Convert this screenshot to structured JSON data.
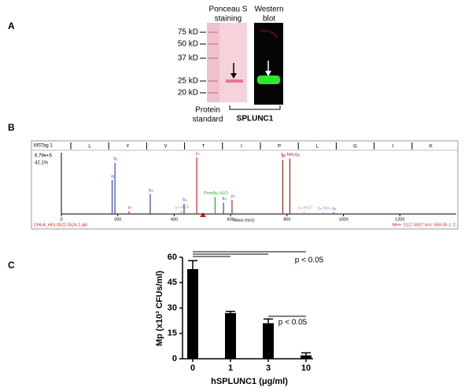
{
  "panel_labels": [
    "A",
    "B",
    "C"
  ],
  "panel_a": {
    "ponceau_title": [
      "Ponceau S",
      "staining"
    ],
    "western_title": [
      "Western",
      "blot"
    ],
    "markers": [
      "75 kD",
      "50 kD",
      "37 kD",
      "25 kD",
      "20 kD"
    ],
    "standard_label": [
      "Protein",
      "standard"
    ],
    "protein_label": "SPLUNC1"
  },
  "chart_data": [
    {
      "type": "spectrum",
      "header": "MSTag 1",
      "sequence": [
        "L",
        "Y",
        "V",
        "T",
        "I",
        "P",
        "L",
        "G",
        "I",
        "K"
      ],
      "intensity_label": "6.79e+5",
      "percent_label": "42.1%",
      "x_label": "Mass (m/z)",
      "file_label": "CHU4_HIS.0522.0524.2.pkl",
      "precursor_label": "MH+: 1117.0927   m/z: 559.05   z: 2",
      "xlim": [
        0,
        1400
      ],
      "ylim": [
        0,
        100
      ],
      "xticks": [
        0,
        200,
        400,
        600,
        800,
        1000,
        1200
      ],
      "x": [
        180,
        190,
        240,
        315,
        425,
        435,
        480,
        545,
        575,
        605,
        785,
        810,
        860,
        930,
        965
      ],
      "values": [
        60,
        90,
        5,
        35,
        5,
        18,
        100,
        30,
        20,
        25,
        95,
        98,
        4,
        3,
        3
      ],
      "peak_labels": [
        "a₂",
        "b₂",
        "y₃",
        "b₃",
        "y₄-H₂O",
        "b₄",
        "y₄",
        "Pom/b₅-H₂O",
        "b₅",
        "y₆",
        "y₇",
        "b₈-NH₃/y₈",
        "y₈-H₂O",
        "b₉-NH₃",
        "y₉"
      ],
      "colors": [
        "#3344cc",
        "#3344cc",
        "#cc2222",
        "#3344cc",
        "#ee8888",
        "#3344cc",
        "#cc2222",
        "#22aa22",
        "#3344cc",
        "#cc2222",
        "#992211",
        "#992211",
        "#ee8888",
        "#8899ee",
        "#cc2222"
      ]
    },
    {
      "type": "bar",
      "xlabel": "hSPLUNC1 (μg/ml)",
      "ylabel": "Mp (x10³ CFUs/ml)",
      "categories": [
        "0",
        "1",
        "3",
        "10"
      ],
      "values": [
        53,
        27,
        21,
        2
      ],
      "errors": [
        5,
        1,
        2.5,
        1.5
      ],
      "color": "#000000",
      "ylim": [
        0,
        60
      ],
      "yticks": [
        0,
        15,
        30,
        45,
        60
      ],
      "annotations": [
        "p < 0.05",
        "p < 0.05"
      ]
    }
  ]
}
